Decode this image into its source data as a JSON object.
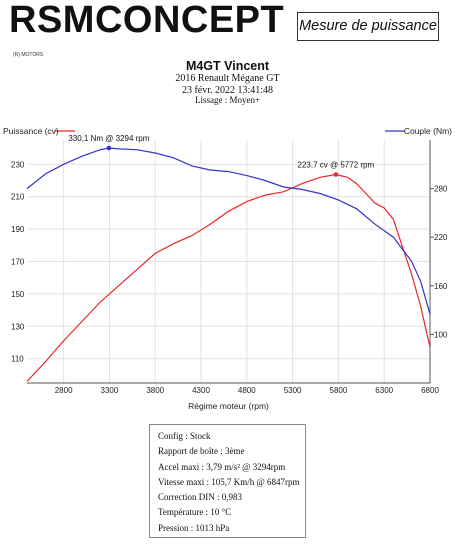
{
  "brand": {
    "name": "RSMCONCEPT",
    "subtitle": "(R) MOTORS",
    "badge": "Mesure de puissance"
  },
  "header": {
    "title": "M4GT Vincent",
    "car": "2016 Renault Mégane GT",
    "datetime": "23 févr. 2022 13:41:48",
    "smoothing": "Lissage : Moyen+"
  },
  "colors": {
    "power": "#e8282a",
    "torque": "#3333cc",
    "grid": "#e2e2e2"
  },
  "chart_data": {
    "type": "line",
    "xlabel": "Régime moteur (rpm)",
    "x_range": [
      2400,
      6800
    ],
    "x_ticks": [
      "2800",
      "3300",
      "3800",
      "4300",
      "4800",
      "5300",
      "5800",
      "6300",
      "6800"
    ],
    "grid": true,
    "legend": "top",
    "series": [
      {
        "name": "Puissance (cv)",
        "axis": "left",
        "y_range": [
          95,
          245
        ],
        "y_ticks": [
          "110",
          "130",
          "150",
          "170",
          "190",
          "210",
          "230"
        ],
        "x": [
          2400,
          2600,
          2800,
          3000,
          3200,
          3400,
          3600,
          3800,
          4000,
          4200,
          4400,
          4600,
          4800,
          5000,
          5200,
          5400,
          5600,
          5772,
          5900,
          6000,
          6100,
          6200,
          6300,
          6400,
          6500,
          6600,
          6700,
          6800
        ],
        "values": [
          96,
          108,
          121,
          133,
          145,
          155,
          165,
          175,
          181,
          186,
          193,
          201,
          207,
          211,
          213,
          218,
          222,
          223.7,
          222,
          218,
          212,
          206,
          203,
          196,
          179,
          162,
          142,
          117
        ]
      },
      {
        "name": "Couple (Nm)",
        "axis": "right",
        "y_range": [
          40,
          340
        ],
        "y_ticks": [
          "100",
          "160",
          "220",
          "280"
        ],
        "x": [
          2400,
          2600,
          2800,
          3000,
          3200,
          3294,
          3400,
          3600,
          3800,
          4000,
          4200,
          4400,
          4600,
          4800,
          5000,
          5200,
          5400,
          5600,
          5800,
          6000,
          6200,
          6400,
          6600,
          6700,
          6800
        ],
        "values": [
          280,
          298,
          310,
          320,
          328,
          330.1,
          329,
          328,
          324,
          318,
          308,
          303,
          301,
          296,
          290,
          282,
          279,
          274,
          266,
          255,
          236,
          220,
          190,
          165,
          125
        ]
      }
    ],
    "annotations": [
      {
        "label": "330,1 Nm @ 3294 rpm",
        "series": "Couple (Nm)",
        "x": 3294,
        "y": 330.1
      },
      {
        "label": "223,7 cv @ 5772 rpm",
        "series": "Puissance (cv)",
        "x": 5772,
        "y": 223.7
      }
    ]
  },
  "info": [
    "Config : Stock",
    "Rapport de boîte : 3ème",
    "Accel maxi : 3,79 m/s² @ 3294rpm",
    "Vitesse maxi : 105,7 Km/h @ 6847rpm",
    "Correction DIN : 0,983",
    "Température : 10 °C",
    "Pression : 1013 hPa"
  ]
}
